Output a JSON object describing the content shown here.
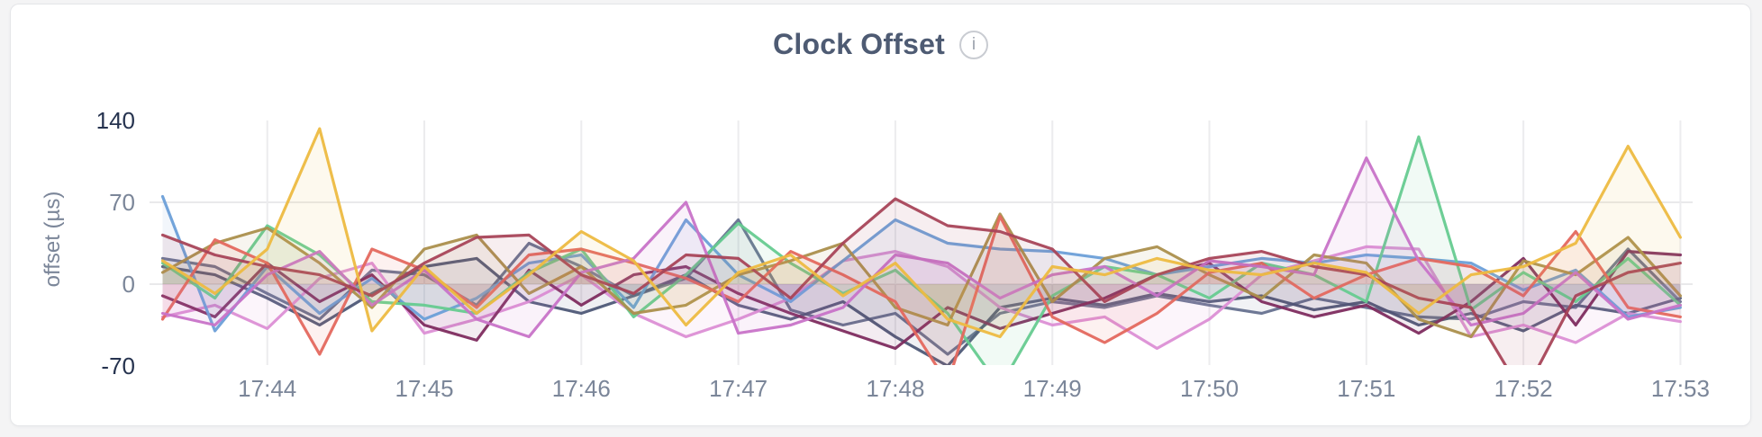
{
  "header": {
    "info_icon_glyph": "i"
  },
  "chart_data": {
    "type": "line",
    "title": "Clock Offset",
    "ylabel": "offset (µs)",
    "ylim": [
      -70,
      140
    ],
    "grid": true,
    "legend": "none",
    "x_start": "17:43:20",
    "x_end": "17:53:00",
    "x_step_seconds": 20,
    "xticks": [
      {
        "t": 40,
        "label": "17:44"
      },
      {
        "t": 100,
        "label": "17:45"
      },
      {
        "t": 160,
        "label": "17:46"
      },
      {
        "t": 220,
        "label": "17:47"
      },
      {
        "t": 280,
        "label": "17:48"
      },
      {
        "t": 340,
        "label": "17:49"
      },
      {
        "t": 400,
        "label": "17:50"
      },
      {
        "t": 460,
        "label": "17:51"
      },
      {
        "t": 520,
        "label": "17:52"
      },
      {
        "t": 580,
        "label": "17:53"
      }
    ],
    "yticks": [
      {
        "value": 140,
        "label": "140",
        "emphasis": true,
        "grid": false
      },
      {
        "value": 70,
        "label": "70",
        "emphasis": false,
        "grid": true
      },
      {
        "value": 0,
        "label": "0",
        "emphasis": false,
        "grid": true
      },
      {
        "value": -70,
        "label": "-70",
        "emphasis": true,
        "grid": false
      }
    ],
    "series": [
      {
        "name": "slate",
        "color": "#66718F",
        "values": [
          22,
          15,
          -8,
          -30,
          12,
          8,
          -18,
          35,
          15,
          -10,
          5,
          55,
          -22,
          -35,
          -25,
          -60,
          -25,
          -15,
          -20,
          -10,
          -18,
          -25,
          -12,
          -20,
          -28,
          -30,
          -15,
          -20,
          30,
          -15
        ]
      },
      {
        "name": "navy",
        "color": "#4E5977",
        "values": [
          15,
          8,
          -12,
          -35,
          -8,
          15,
          22,
          -15,
          -25,
          -10,
          8,
          -18,
          -30,
          -15,
          -45,
          -70,
          -20,
          -12,
          -18,
          -8,
          -15,
          -10,
          -22,
          -15,
          -35,
          -25,
          -40,
          -18,
          -25,
          -12
        ]
      },
      {
        "name": "pink",
        "color": "#DC8FD5",
        "values": [
          -28,
          -18,
          -38,
          5,
          18,
          -42,
          -30,
          -15,
          8,
          -25,
          -45,
          -30,
          -12,
          20,
          28,
          15,
          -20,
          -35,
          -28,
          -55,
          -30,
          8,
          20,
          32,
          30,
          -45,
          -35,
          -50,
          -25,
          -32
        ]
      },
      {
        "name": "plum",
        "color": "#7E2C5F",
        "values": [
          -10,
          -28,
          18,
          -15,
          8,
          -35,
          -48,
          12,
          -18,
          8,
          15,
          -8,
          -25,
          -40,
          -55,
          -20,
          -38,
          -25,
          -12,
          8,
          18,
          -15,
          -28,
          -18,
          -42,
          -15,
          22,
          -35,
          28,
          25
        ]
      },
      {
        "name": "blue",
        "color": "#6C9FD8",
        "values": [
          75,
          -40,
          15,
          -25,
          5,
          -30,
          -12,
          18,
          25,
          -20,
          55,
          8,
          -15,
          20,
          55,
          35,
          30,
          28,
          22,
          8,
          15,
          22,
          18,
          25,
          22,
          18,
          -5,
          12,
          -28,
          -20
        ]
      },
      {
        "name": "green",
        "color": "#66CB90",
        "values": [
          18,
          -12,
          50,
          25,
          -15,
          -18,
          -25,
          10,
          30,
          -28,
          8,
          52,
          18,
          -8,
          12,
          -25,
          -88,
          -10,
          15,
          8,
          -12,
          18,
          8,
          -15,
          126,
          -22,
          10,
          -15,
          22,
          -18
        ]
      },
      {
        "name": "olive",
        "color": "#AB8F4C",
        "values": [
          10,
          35,
          48,
          18,
          -20,
          30,
          42,
          -8,
          15,
          -25,
          -18,
          8,
          20,
          35,
          -20,
          -35,
          60,
          -15,
          22,
          32,
          8,
          -12,
          25,
          18,
          -30,
          -45,
          20,
          8,
          40,
          -10
        ]
      },
      {
        "name": "salmon",
        "color": "#E4685E",
        "values": [
          -30,
          38,
          18,
          -60,
          30,
          12,
          -20,
          25,
          30,
          18,
          5,
          -15,
          28,
          8,
          -15,
          -85,
          58,
          -28,
          -50,
          -25,
          10,
          18,
          -12,
          8,
          22,
          15,
          -10,
          45,
          -20,
          -28
        ]
      },
      {
        "name": "orchid",
        "color": "#C873C8",
        "values": [
          -25,
          -35,
          8,
          28,
          -18,
          12,
          -30,
          -45,
          10,
          22,
          70,
          -42,
          -35,
          -20,
          25,
          18,
          -12,
          8,
          15,
          -10,
          20,
          15,
          8,
          108,
          20,
          -35,
          -25,
          10,
          -30,
          -18
        ]
      },
      {
        "name": "maroon",
        "color": "#A84459",
        "values": [
          42,
          25,
          15,
          8,
          -10,
          18,
          40,
          42,
          8,
          -8,
          25,
          22,
          -12,
          35,
          73,
          50,
          45,
          30,
          -15,
          8,
          22,
          28,
          15,
          8,
          -12,
          -20,
          -95,
          -10,
          10,
          18
        ]
      },
      {
        "name": "gold",
        "color": "#EDBB41",
        "values": [
          20,
          -8,
          30,
          133,
          -40,
          15,
          -25,
          8,
          45,
          20,
          -35,
          10,
          25,
          -10,
          18,
          -30,
          -45,
          15,
          8,
          22,
          12,
          8,
          18,
          10,
          -25,
          8,
          15,
          35,
          118,
          40
        ]
      }
    ]
  }
}
